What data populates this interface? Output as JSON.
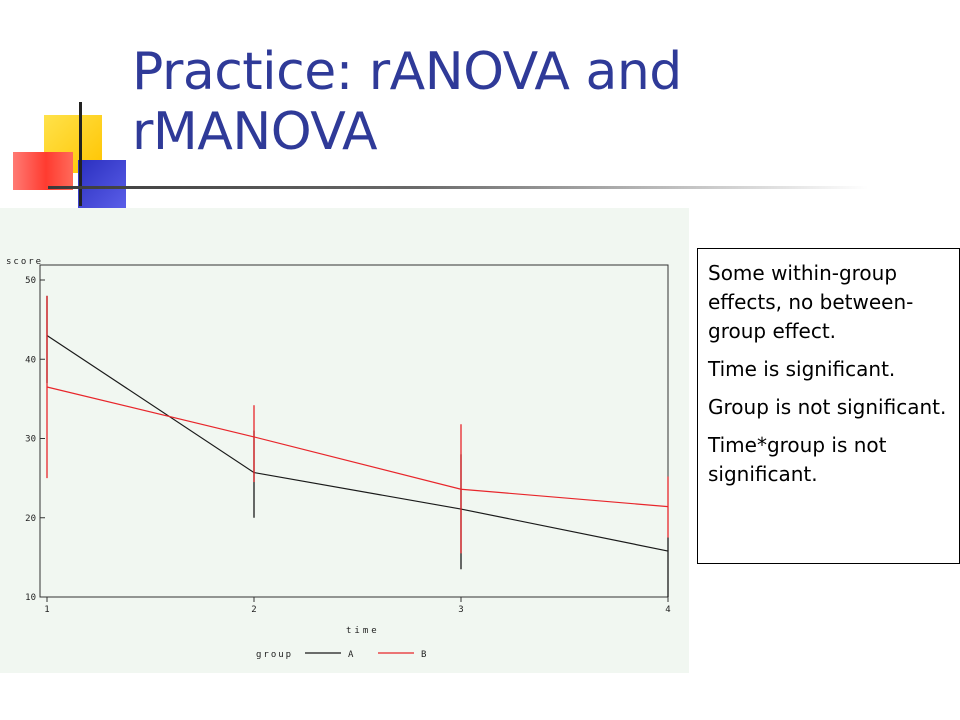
{
  "slide": {
    "title": "Practice: rANOVA and rMANOVA",
    "accent_colors": {
      "yellow": "#ffd200",
      "blue": "#2a2fbf",
      "red": "#ff3b30",
      "title": "#2f3a98"
    }
  },
  "note": {
    "paragraphs": [
      "Some within-group effects, no between-group effect.",
      "Time is significant.",
      "Group is not significant.",
      "Time*group is not significant."
    ]
  },
  "chart_data": {
    "type": "line",
    "title": "",
    "xlabel": "time",
    "ylabel": "score",
    "x": [
      1,
      2,
      3,
      4
    ],
    "xticks": [
      "1",
      "2",
      "3",
      "4"
    ],
    "xlim": [
      1,
      4
    ],
    "yticks": [
      "10",
      "20",
      "30",
      "40",
      "50"
    ],
    "ylim": [
      10,
      50
    ],
    "grid": false,
    "legend": {
      "title": "group",
      "placement": "bottom"
    },
    "background": "#f1f7f1",
    "series": [
      {
        "name": "A",
        "color": "#1a1a1a",
        "values": [
          43,
          25.7,
          21.1,
          15.8
        ],
        "error_low": [
          37,
          20,
          13.5,
          10
        ],
        "error_high": [
          48,
          31,
          28,
          17.5
        ]
      },
      {
        "name": "B",
        "color": "#e8262b",
        "values": [
          36.5,
          30.2,
          23.6,
          21.4
        ],
        "error_low": [
          25,
          24.5,
          15.5,
          17.5
        ],
        "error_high": [
          48,
          34.2,
          31.8,
          25.2
        ]
      }
    ]
  }
}
